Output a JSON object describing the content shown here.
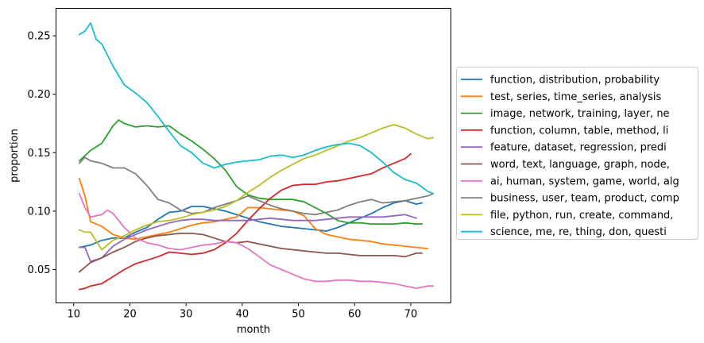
{
  "chart_data": {
    "type": "line",
    "xlabel": "month",
    "ylabel": "proportion",
    "xlim": [
      6.85,
      77.15
    ],
    "ylim": [
      0.0215,
      0.2735
    ],
    "xticks": [
      10,
      20,
      30,
      40,
      50,
      60,
      70
    ],
    "yticks": [
      0.05,
      0.1,
      0.15,
      0.2,
      0.25
    ],
    "ytick_labels": [
      "0.05",
      "0.10",
      "0.15",
      "0.20",
      "0.25"
    ],
    "grid": false,
    "legend_position": "center-right outside plot",
    "series": [
      {
        "name": "function, distribution, probability",
        "color": "#1f77b4",
        "x": [
          11,
          13,
          15,
          17,
          19,
          21,
          23,
          25,
          27,
          29,
          31,
          33,
          35,
          37,
          39,
          41,
          43,
          45,
          47,
          49,
          51,
          53,
          55,
          57,
          59,
          61,
          63,
          65,
          67,
          69,
          71,
          72
        ],
        "y": [
          0.069,
          0.071,
          0.075,
          0.077,
          0.077,
          0.082,
          0.086,
          0.093,
          0.099,
          0.1,
          0.104,
          0.104,
          0.102,
          0.1,
          0.097,
          0.094,
          0.091,
          0.089,
          0.087,
          0.086,
          0.085,
          0.084,
          0.083,
          0.086,
          0.09,
          0.094,
          0.098,
          0.103,
          0.107,
          0.109,
          0.106,
          0.107
        ]
      },
      {
        "name": "test, series, time_series, analysis",
        "color": "#ff7f0e",
        "x": [
          11,
          12,
          13,
          15,
          17,
          19,
          21,
          23,
          25,
          27,
          29,
          31,
          33,
          35,
          37,
          39,
          41,
          43,
          45,
          47,
          49,
          51,
          53,
          55,
          57,
          59,
          61,
          63,
          65,
          67,
          69,
          71,
          73
        ],
        "y": [
          0.128,
          0.113,
          0.091,
          0.087,
          0.08,
          0.077,
          0.076,
          0.078,
          0.08,
          0.082,
          0.085,
          0.088,
          0.09,
          0.091,
          0.093,
          0.095,
          0.103,
          0.103,
          0.102,
          0.101,
          0.1,
          0.096,
          0.085,
          0.08,
          0.078,
          0.076,
          0.075,
          0.074,
          0.072,
          0.071,
          0.07,
          0.069,
          0.068
        ]
      },
      {
        "name": "image, network, training, layer, ne",
        "color": "#2ca02c",
        "x": [
          11,
          13,
          15,
          17,
          18,
          19,
          21,
          23,
          25,
          27,
          29,
          31,
          33,
          35,
          37,
          39,
          41,
          43,
          45,
          47,
          49,
          51,
          53,
          55,
          57,
          59,
          61,
          63,
          65,
          67,
          69,
          71,
          72
        ],
        "y": [
          0.143,
          0.152,
          0.158,
          0.173,
          0.178,
          0.175,
          0.172,
          0.173,
          0.172,
          0.173,
          0.166,
          0.16,
          0.153,
          0.145,
          0.135,
          0.121,
          0.114,
          0.111,
          0.11,
          0.11,
          0.11,
          0.108,
          0.103,
          0.098,
          0.092,
          0.09,
          0.09,
          0.089,
          0.089,
          0.089,
          0.09,
          0.089,
          0.089
        ]
      },
      {
        "name": "function, column, table, method, li",
        "color": "#d62728",
        "x": [
          11,
          12,
          13,
          15,
          17,
          19,
          21,
          23,
          25,
          27,
          29,
          31,
          33,
          35,
          37,
          39,
          41,
          43,
          45,
          47,
          49,
          51,
          53,
          55,
          57,
          59,
          61,
          63,
          65,
          67,
          69,
          70
        ],
        "y": [
          0.033,
          0.034,
          0.036,
          0.038,
          0.044,
          0.05,
          0.055,
          0.058,
          0.061,
          0.065,
          0.064,
          0.063,
          0.064,
          0.067,
          0.073,
          0.081,
          0.092,
          0.102,
          0.111,
          0.118,
          0.122,
          0.123,
          0.123,
          0.125,
          0.126,
          0.128,
          0.13,
          0.132,
          0.137,
          0.141,
          0.145,
          0.149
        ]
      },
      {
        "name": "feature, dataset, regression, predi",
        "color": "#9467bd",
        "x": [
          11,
          12,
          13,
          15,
          17,
          19,
          21,
          23,
          25,
          27,
          29,
          31,
          33,
          35,
          37,
          39,
          41,
          43,
          45,
          47,
          49,
          51,
          53,
          55,
          57,
          59,
          61,
          63,
          65,
          67,
          69,
          71
        ],
        "y": [
          0.069,
          0.069,
          0.057,
          0.06,
          0.07,
          0.076,
          0.08,
          0.084,
          0.087,
          0.09,
          0.092,
          0.093,
          0.093,
          0.092,
          0.092,
          0.092,
          0.092,
          0.093,
          0.094,
          0.093,
          0.092,
          0.092,
          0.092,
          0.093,
          0.094,
          0.095,
          0.095,
          0.095,
          0.095,
          0.096,
          0.097,
          0.094
        ]
      },
      {
        "name": "word, text, language, graph, node,",
        "color": "#8c564b",
        "x": [
          11,
          12,
          13,
          15,
          17,
          19,
          21,
          23,
          25,
          27,
          29,
          31,
          33,
          35,
          37,
          39,
          41,
          43,
          45,
          47,
          49,
          51,
          53,
          55,
          57,
          59,
          61,
          63,
          65,
          67,
          69,
          71,
          72
        ],
        "y": [
          0.048,
          0.052,
          0.056,
          0.06,
          0.065,
          0.069,
          0.074,
          0.077,
          0.079,
          0.08,
          0.081,
          0.081,
          0.08,
          0.077,
          0.074,
          0.073,
          0.074,
          0.072,
          0.07,
          0.068,
          0.067,
          0.066,
          0.065,
          0.064,
          0.064,
          0.063,
          0.062,
          0.062,
          0.062,
          0.062,
          0.061,
          0.064,
          0.064
        ]
      },
      {
        "name": "ai, human, system, game, world, alg",
        "color": "#e377c2",
        "x": [
          11,
          12,
          13,
          15,
          16,
          17,
          19,
          21,
          23,
          25,
          27,
          29,
          31,
          33,
          35,
          37,
          39,
          41,
          43,
          45,
          47,
          49,
          51,
          53,
          55,
          57,
          59,
          61,
          63,
          65,
          67,
          69,
          71,
          73,
          74
        ],
        "y": [
          0.115,
          0.103,
          0.095,
          0.097,
          0.101,
          0.098,
          0.086,
          0.077,
          0.073,
          0.071,
          0.068,
          0.067,
          0.069,
          0.071,
          0.072,
          0.074,
          0.073,
          0.068,
          0.061,
          0.054,
          0.05,
          0.046,
          0.042,
          0.04,
          0.04,
          0.041,
          0.041,
          0.04,
          0.04,
          0.039,
          0.038,
          0.036,
          0.034,
          0.036,
          0.036
        ]
      },
      {
        "name": "business, user, team, product, comp",
        "color": "#7f7f7f",
        "x": [
          11,
          12,
          13,
          15,
          17,
          19,
          21,
          23,
          25,
          27,
          29,
          31,
          33,
          35,
          37,
          39,
          41,
          43,
          45,
          47,
          49,
          51,
          53,
          55,
          57,
          59,
          61,
          63,
          65,
          67,
          69,
          71,
          73,
          74
        ],
        "y": [
          0.141,
          0.146,
          0.143,
          0.141,
          0.137,
          0.137,
          0.132,
          0.122,
          0.11,
          0.107,
          0.101,
          0.098,
          0.099,
          0.103,
          0.106,
          0.109,
          0.113,
          0.109,
          0.105,
          0.102,
          0.1,
          0.098,
          0.097,
          0.099,
          0.101,
          0.105,
          0.108,
          0.11,
          0.107,
          0.108,
          0.109,
          0.111,
          0.113,
          0.115
        ]
      },
      {
        "name": "file, python, run, create, command,",
        "color": "#bcbd22",
        "x": [
          11,
          12,
          13,
          15,
          17,
          19,
          21,
          23,
          25,
          27,
          29,
          31,
          33,
          35,
          37,
          39,
          41,
          43,
          45,
          47,
          49,
          51,
          53,
          55,
          57,
          59,
          61,
          63,
          65,
          67,
          69,
          71,
          73,
          74
        ],
        "y": [
          0.084,
          0.082,
          0.082,
          0.067,
          0.075,
          0.079,
          0.084,
          0.088,
          0.091,
          0.092,
          0.094,
          0.097,
          0.099,
          0.101,
          0.104,
          0.109,
          0.116,
          0.122,
          0.129,
          0.135,
          0.14,
          0.145,
          0.148,
          0.152,
          0.156,
          0.16,
          0.163,
          0.167,
          0.171,
          0.174,
          0.171,
          0.166,
          0.162,
          0.163
        ]
      },
      {
        "name": "science, me, re, thing, don, questi",
        "color": "#17becf",
        "x": [
          11,
          12,
          13,
          14,
          15,
          17,
          19,
          21,
          23,
          25,
          27,
          29,
          31,
          33,
          35,
          37,
          39,
          41,
          43,
          45,
          47,
          49,
          51,
          53,
          55,
          57,
          59,
          61,
          63,
          65,
          67,
          69,
          71,
          73,
          74
        ],
        "y": [
          0.251,
          0.254,
          0.261,
          0.247,
          0.243,
          0.224,
          0.208,
          0.201,
          0.193,
          0.181,
          0.168,
          0.156,
          0.15,
          0.141,
          0.137,
          0.14,
          0.142,
          0.143,
          0.144,
          0.147,
          0.148,
          0.146,
          0.148,
          0.152,
          0.155,
          0.157,
          0.158,
          0.156,
          0.15,
          0.142,
          0.133,
          0.127,
          0.124,
          0.117,
          0.115
        ]
      }
    ]
  }
}
